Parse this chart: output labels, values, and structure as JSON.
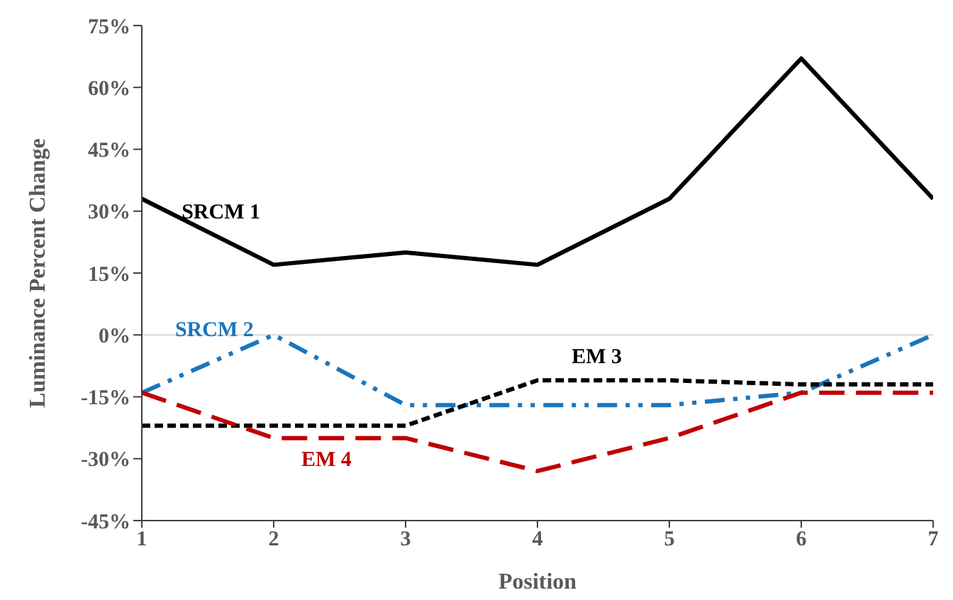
{
  "chart_data": {
    "type": "line",
    "xlabel": "Position",
    "ylabel": "Luminance Percent Change",
    "x": [
      1,
      2,
      3,
      4,
      5,
      6,
      7
    ],
    "series": [
      {
        "name": "SRCM 1",
        "color": "#000000",
        "line_style": "solid",
        "values": [
          33,
          17,
          20,
          17,
          33,
          67,
          33
        ]
      },
      {
        "name": "SRCM 2",
        "color": "#1b75bc",
        "line_style": "dashed",
        "values": [
          -14,
          0,
          -17,
          -17,
          -17,
          -14,
          0
        ]
      },
      {
        "name": "EM 3",
        "color": "#000000",
        "line_style": "dashed",
        "values": [
          -22,
          -22,
          -22,
          -11,
          -11,
          -12,
          -12
        ]
      },
      {
        "name": "EM 4",
        "color": "#c00000",
        "line_style": "dashed",
        "values": [
          -14,
          -25,
          -25,
          -33,
          -25,
          -14,
          -14
        ]
      }
    ],
    "xlim": [
      1,
      7
    ],
    "xticks": [
      1,
      2,
      3,
      4,
      5,
      6,
      7
    ],
    "ylim": [
      -45,
      75
    ],
    "yticks": [
      {
        "value": -45,
        "label": "-45%"
      },
      {
        "value": -30,
        "label": "-30%"
      },
      {
        "value": -15,
        "label": "-15%"
      },
      {
        "value": 0,
        "label": "0%"
      },
      {
        "value": 15,
        "label": "15%"
      },
      {
        "value": 30,
        "label": "30%"
      },
      {
        "value": 45,
        "label": "45%"
      },
      {
        "value": 60,
        "label": "60%"
      },
      {
        "value": 75,
        "label": "75%"
      }
    ],
    "ref_lines": [
      {
        "axis": "y",
        "value": 0,
        "color": "#d9d9d9"
      }
    ],
    "grid": false,
    "legend": false,
    "marker": "none"
  }
}
